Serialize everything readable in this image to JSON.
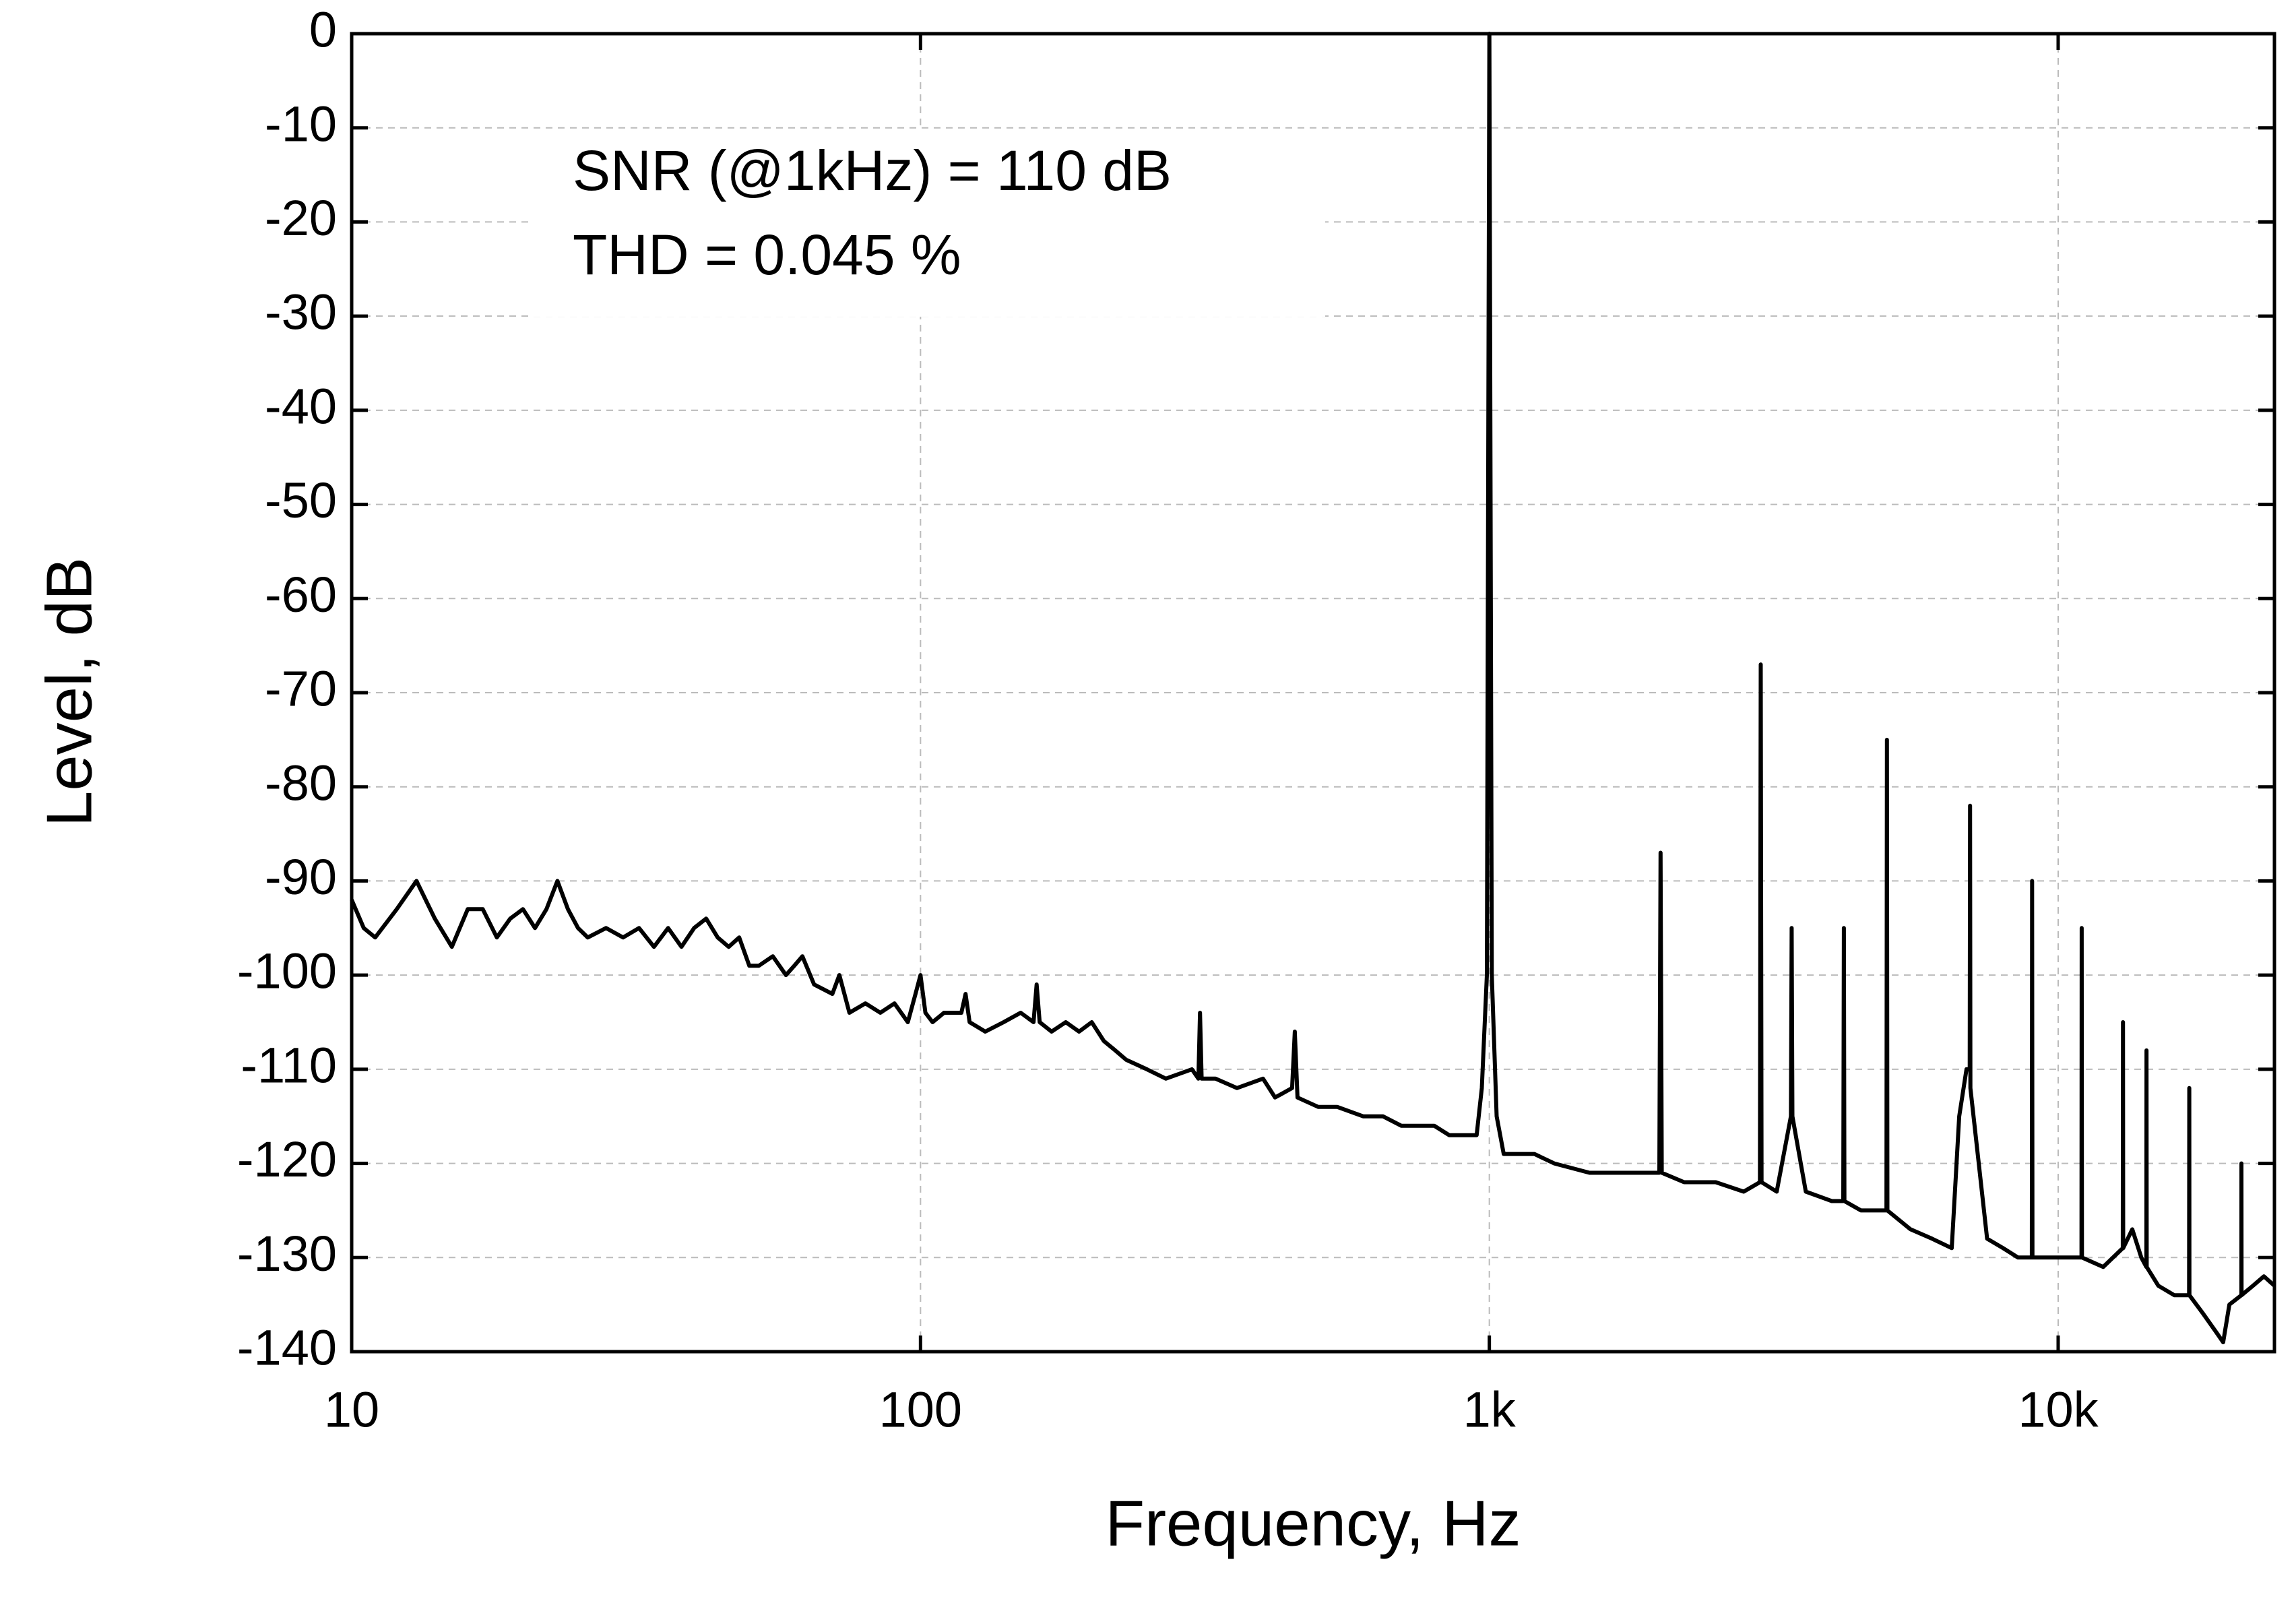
{
  "chart_data": {
    "type": "line",
    "xlabel": "Frequency, Hz",
    "ylabel": "Level, dB",
    "annotations": [
      "SNR (@1kHz) = 110 dB",
      "THD = 0.045 %"
    ],
    "xscale": "log",
    "grid": true,
    "color": "#000000",
    "xlim": [
      10,
      24000
    ],
    "ylim": [
      -140,
      0
    ],
    "xticks": [
      10,
      100,
      {
        "value": 1000,
        "label": "1k"
      },
      {
        "value": 10000,
        "label": "10k"
      }
    ],
    "yticks": [
      -140,
      -130,
      -120,
      -110,
      -100,
      -90,
      -80,
      -70,
      -60,
      -50,
      -40,
      -30,
      -20,
      -10,
      0
    ],
    "x": [
      10,
      10.5,
      11,
      12,
      13,
      14,
      15,
      16,
      17,
      18,
      19,
      20,
      21,
      22,
      23,
      24,
      25,
      26,
      28,
      30,
      32,
      34,
      36,
      38,
      40,
      42,
      44,
      46,
      48,
      50,
      52,
      55,
      58,
      60,
      62,
      65,
      70,
      72,
      75,
      80,
      85,
      90,
      95,
      98,
      100,
      102,
      105,
      110,
      118,
      120,
      122,
      130,
      140,
      150,
      158,
      160,
      162,
      170,
      180,
      190,
      200,
      210,
      220,
      230,
      250,
      270,
      300,
      308,
      310,
      312,
      330,
      360,
      400,
      420,
      450,
      455,
      460,
      500,
      540,
      600,
      650,
      700,
      750,
      800,
      850,
      900,
      950,
      970,
      990,
      1000,
      1010,
      1030,
      1060,
      1100,
      1200,
      1300,
      1500,
      1700,
      1900,
      1990,
      2000,
      2010,
      2200,
      2500,
      2800,
      2990,
      3000,
      3010,
      3200,
      3390,
      3400,
      3410,
      3600,
      4000,
      4190,
      4200,
      4210,
      4500,
      4990,
      5000,
      5010,
      5500,
      6000,
      6500,
      6700,
      6900,
      6990,
      7000,
      7010,
      7500,
      8000,
      8500,
      8990,
      9000,
      9010,
      9500,
      10000,
      10990,
      11000,
      11010,
      12000,
      12990,
      13000,
      13010,
      13500,
      14000,
      14290,
      14300,
      14310,
      15000,
      16000,
      16990,
      17000,
      17010,
      18000,
      19000,
      19500,
      20000,
      20990,
      21000,
      21010,
      22000,
      23000,
      24000
    ],
    "values": [
      -92,
      -95,
      -96,
      -93,
      -90,
      -94,
      -97,
      -93,
      -93,
      -96,
      -94,
      -93,
      -95,
      -93,
      -90,
      -93,
      -95,
      -96,
      -95,
      -96,
      -95,
      -97,
      -95,
      -97,
      -95,
      -94,
      -96,
      -97,
      -96,
      -99,
      -99,
      -98,
      -100,
      -99,
      -98,
      -101,
      -102,
      -100,
      -104,
      -103,
      -104,
      -103,
      -105,
      -102,
      -100,
      -104,
      -105,
      -104,
      -104,
      -102,
      -105,
      -106,
      -105,
      -104,
      -105,
      -101,
      -105,
      -106,
      -105,
      -106,
      -105,
      -107,
      -108,
      -109,
      -110,
      -111,
      -110,
      -111,
      -104,
      -111,
      -111,
      -112,
      -111,
      -113,
      -112,
      -106,
      -113,
      -114,
      -114,
      -115,
      -115,
      -116,
      -116,
      -116,
      -117,
      -117,
      -117,
      -112,
      -100,
      0,
      -100,
      -115,
      -119,
      -119,
      -119,
      -120,
      -121,
      -121,
      -121,
      -121,
      -87,
      -121,
      -122,
      -122,
      -123,
      -122,
      -67,
      -122,
      -123,
      -115,
      -95,
      -115,
      -123,
      -124,
      -124,
      -95,
      -124,
      -125,
      -125,
      -75,
      -125,
      -127,
      -128,
      -129,
      -115,
      -110,
      -110,
      -82,
      -112,
      -128,
      -129,
      -130,
      -130,
      -90,
      -130,
      -130,
      -130,
      -130,
      -95,
      -130,
      -131,
      -129,
      -105,
      -129,
      -127,
      -130,
      -131,
      -108,
      -131,
      -133,
      -134,
      -134,
      -112,
      -134,
      -136,
      -138,
      -139,
      -135,
      -134,
      -120,
      -134,
      -133,
      -132,
      -133
    ]
  }
}
